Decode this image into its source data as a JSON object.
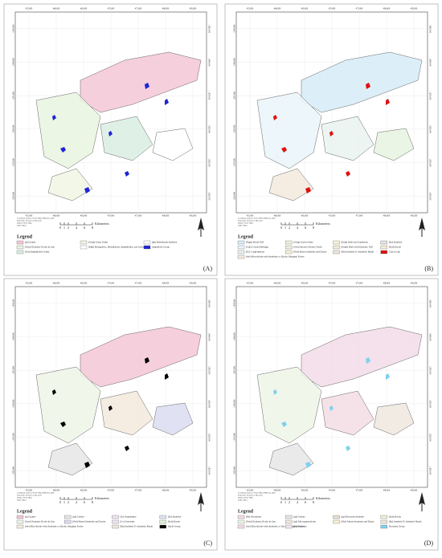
{
  "grid_labels": {
    "x": [
      "455,000",
      "460,000",
      "465,000",
      "470,000",
      "475,000",
      "480,000",
      "485,000"
    ],
    "y": [
      "1,845,000",
      "1,840,000",
      "1,835,000",
      "1,830,000",
      "1,825,000",
      "1,820,000"
    ]
  },
  "coordinate_note": [
    "Coordinate System: WGS 1984 UTM Zone 48N",
    "Projection: Transverse Mercator",
    "Datum: WGS 1984",
    "Units: Meter"
  ],
  "scale": {
    "ticks": [
      0,
      1,
      2,
      4,
      6,
      8
    ],
    "unit": "Kilometers"
  },
  "legend_title": "Legend",
  "panels": [
    {
      "label": "(A)",
      "columns": [
        [
          {
            "name": "(g) Granite",
            "color": "#f4c7d6"
          },
          {
            "name": "(Um) Ultrabasic Rocks In Gen",
            "color": "#e9f5e0"
          },
          {
            "name": "(Sch) Amphibolite Schist",
            "color": "#d9efe3"
          }
        ],
        [
          {
            "name": "(Schg) Green Schist",
            "color": "#f0f6e4"
          },
          {
            "name": "(Mm) Metagabbro, Metadiabase, Amphibolite, and Gneiss",
            "color": "#ffffff"
          }
        ],
        [
          {
            "name": "(gh) Hornblende Andesite",
            "color": "#ffffff"
          },
          {
            "name": "Amphibole Group",
            "color": "#1f24d6"
          }
        ]
      ]
    },
    {
      "label": "(B)",
      "columns": [
        [
          {
            "name": "(Ngm) Marly Tuff",
            "color": "#d6ecf7"
          },
          {
            "name": "(Cm) Colored Mélange",
            "color": "#eaf4f9"
          },
          {
            "name": "(Ec) Conglomerate",
            "color": "#e9f3ee"
          },
          {
            "name": "(dw) Microdiorite with Andesitic or Dacitic Marginal Facies",
            "color": "#f3eadd"
          }
        ],
        [
          {
            "name": "(Schg) Green Schist",
            "color": "#e8f3e0"
          },
          {
            "name": "(Sch) Sericite-Chlorite Schist",
            "color": "#eef0dc"
          },
          {
            "name": "(Ntd) Altered Andesite and Dacite",
            "color": "#f6f0d6"
          }
        ],
        [
          {
            "name": "(Ksm) Shale and Sandstone",
            "color": "#f7f4d8"
          },
          {
            "name": "(Ksmt) Shale with Diabasic Tuff",
            "color": "#f3ecd6"
          },
          {
            "name": "(Ba) Andesite To Andesitic Basalt",
            "color": "#eee5dc"
          }
        ],
        [
          {
            "name": "(Ea) Andesite",
            "color": "#e3e3e3"
          },
          {
            "name": "(Ead) Dacite",
            "color": "#f6ecd4"
          },
          {
            "name": "Clay Group",
            "color": "#e01010"
          }
        ]
      ]
    },
    {
      "label": "(C)",
      "columns": [
        [
          {
            "name": "(g) Granite",
            "color": "#f4c7d6"
          },
          {
            "name": "(Um) Ultrabasic Rocks In Gen",
            "color": "#eef5e8"
          },
          {
            "name": "(dw) Microdiorite with Andesitic or Dacitic Marginal Facies",
            "color": "#f3eadd"
          }
        ],
        [
          {
            "name": "(gb) Gabbro",
            "color": "#e6e6e6"
          },
          {
            "name": "(Ntd) Altered Andesite and Dacite",
            "color": "#dcdcf2"
          }
        ],
        [
          {
            "name": "(Sr) Serpentinite",
            "color": "#f0e2f0"
          },
          {
            "name": "(Lv) Listvenite",
            "color": "#eee5f2"
          },
          {
            "name": "(Ba) Andesite To Andesitic Basalt",
            "color": "#eee5dc"
          }
        ],
        [
          {
            "name": "(Ea) Andesite",
            "color": "#dfe4f4"
          },
          {
            "name": "(Ead) Dacite",
            "color": "#e4f0d8"
          },
          {
            "name": "Oxide Group",
            "color": "#000000"
          }
        ]
      ]
    },
    {
      "label": "(D)",
      "columns": [
        [
          {
            "name": "(Py) Pyroxenite",
            "color": "#f2dce8"
          },
          {
            "name": "(Um) Ultrabasic Rocks In Gen",
            "color": "#eef5e8"
          },
          {
            "name": "(dw) Microdiorite with Andesitic or Dacitic Marginal Facies",
            "color": "#f3dde4"
          }
        ],
        [
          {
            "name": "(gb) Gabbro",
            "color": "#e6e6e6"
          },
          {
            "name": "(gd) Microgranodiorite",
            "color": "#efe8df"
          },
          {
            "name": "(Ea) Andesite",
            "color": "#f3e6ee"
          }
        ],
        [
          {
            "name": "(gp) Pyroxene Andesite",
            "color": "#e8dccf"
          },
          {
            "name": "(Ntd) Altered Andesite and Dacite",
            "color": "#f6f0d6"
          }
        ],
        [
          {
            "name": "(Ead) Dacite",
            "color": "#eef2d8"
          },
          {
            "name": "(Ba) Andesite To Andesitic Basalt",
            "color": "#eee5dc"
          },
          {
            "name": "Pyroxene Group",
            "color": "#7fd0ee"
          }
        ]
      ]
    }
  ]
}
